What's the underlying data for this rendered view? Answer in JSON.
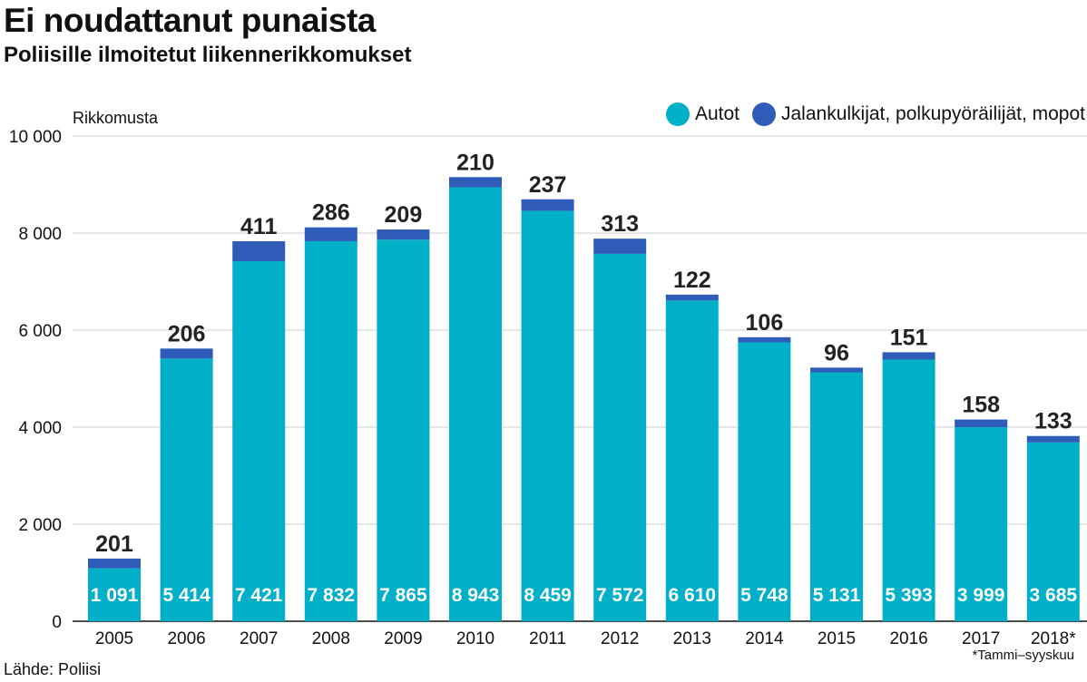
{
  "header": {
    "title": "Ei noudattanut punaista",
    "subtitle": "Poliisille ilmoitetut liikennerikkomukset"
  },
  "footer": {
    "source": "Lähde: Poliisi",
    "footnote": "*Tammi–syyskuu"
  },
  "colors": {
    "autot": "#00b0c8",
    "muut": "#2e5cb8",
    "grid": "#cccccc"
  },
  "legend": {
    "autot": "Autot",
    "muut": "Jalankulkijat, polkupyöräilijät, mopot"
  },
  "chart_data": {
    "type": "bar",
    "stacked": true,
    "title": "Ei noudattanut punaista",
    "subtitle": "Poliisille ilmoitetut liikennerikkomukset",
    "ylabel": "Rikkomusta",
    "xlabel": "",
    "ylim": [
      0,
      10000
    ],
    "yticks": [
      0,
      2000,
      4000,
      6000,
      8000,
      10000
    ],
    "ytick_labels": [
      "0",
      "2 000",
      "4 000",
      "6 000",
      "8 000",
      "10 000"
    ],
    "grid": true,
    "legend_position": "top-right",
    "categories": [
      "2005",
      "2006",
      "2007",
      "2008",
      "2009",
      "2010",
      "2011",
      "2012",
      "2013",
      "2014",
      "2015",
      "2016",
      "2017",
      "2018*"
    ],
    "series": [
      {
        "name": "Autot",
        "values": [
          1091,
          5414,
          7421,
          7832,
          7865,
          8943,
          8459,
          7572,
          6610,
          5748,
          5131,
          5393,
          3999,
          3685
        ],
        "labels": [
          "1 091",
          "5 414",
          "7 421",
          "7 832",
          "7 865",
          "8 943",
          "8 459",
          "7 572",
          "6 610",
          "5 748",
          "5 131",
          "5 393",
          "3 999",
          "3 685"
        ]
      },
      {
        "name": "Jalankulkijat, polkupyöräilijät, mopot",
        "values": [
          201,
          206,
          411,
          286,
          209,
          210,
          237,
          313,
          122,
          106,
          96,
          151,
          158,
          133
        ],
        "labels": [
          "201",
          "206",
          "411",
          "286",
          "209",
          "210",
          "237",
          "313",
          "122",
          "106",
          "96",
          "151",
          "158",
          "133"
        ]
      }
    ]
  }
}
